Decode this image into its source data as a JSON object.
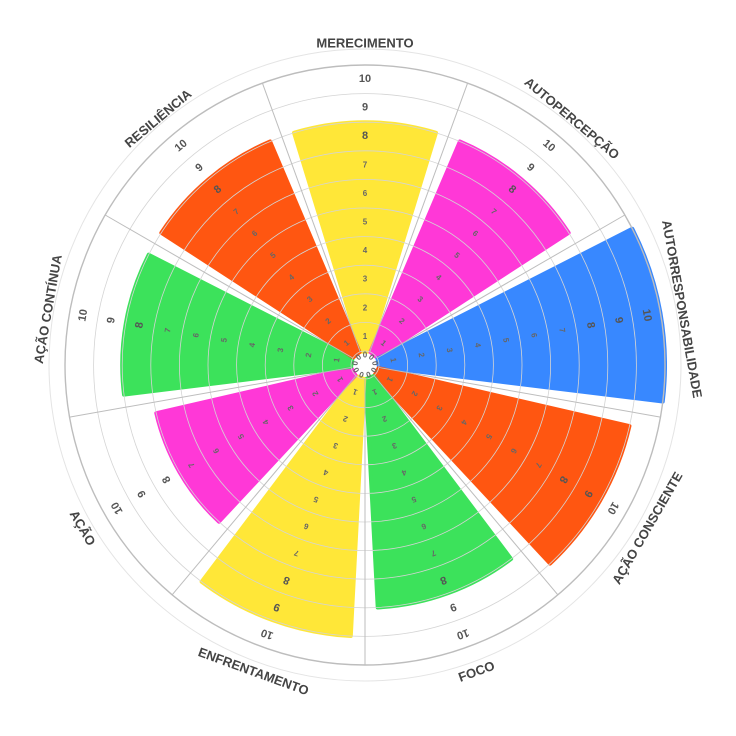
{
  "chart_data": {
    "type": "polar-area",
    "title": "",
    "categories": [
      "MERECIMENTO",
      "AUTOPERCEPÇÃO",
      "AUTORRESPONSABILIDADE",
      "AÇÃO CONSCIENTE",
      "FOCO",
      "ENFRENTAMENTO",
      "AÇÃO",
      "AÇÃO CONTÍNUA",
      "RESILIÊNCIA"
    ],
    "values": [
      8,
      8,
      10,
      9,
      8,
      9,
      7,
      8,
      8
    ],
    "colors": [
      "#ffe629",
      "#ff2ad4",
      "#2a7fff",
      "#ff4a00",
      "#2ee04f",
      "#ffe629",
      "#ff2ad4",
      "#2ee04f",
      "#ff4a00"
    ],
    "rlim": [
      0,
      10
    ],
    "ticks": [
      "0",
      "1",
      "2",
      "3",
      "4",
      "5",
      "6",
      "7",
      "8",
      "9",
      "10"
    ],
    "grid": true,
    "legend": "none"
  }
}
